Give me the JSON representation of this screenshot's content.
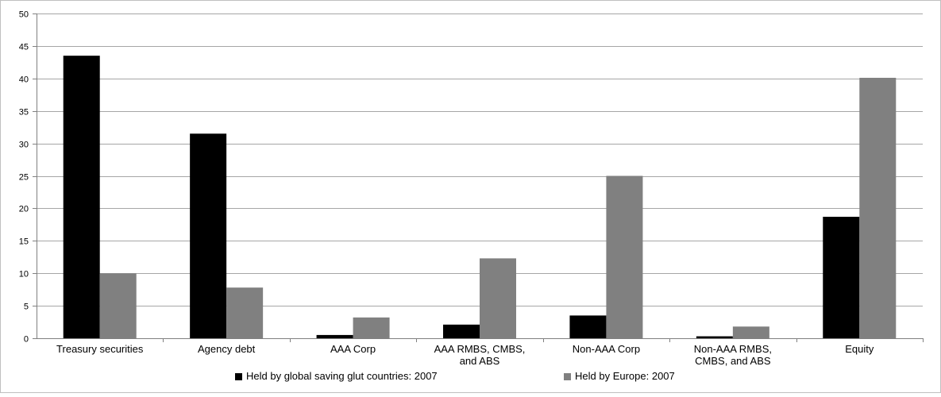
{
  "chart_data": {
    "type": "bar",
    "categories": [
      [
        "Treasury securities"
      ],
      [
        "Agency debt"
      ],
      [
        "AAA Corp"
      ],
      [
        "AAA RMBS, CMBS,",
        "and ABS"
      ],
      [
        "Non-AAA Corp"
      ],
      [
        "Non-AAA RMBS,",
        "CMBS, and ABS"
      ],
      [
        "Equity"
      ]
    ],
    "series": [
      {
        "name": "Held by global saving glut countries: 2007",
        "color": "#000000",
        "values": [
          43.5,
          31.5,
          0.5,
          2.1,
          3.5,
          0.3,
          18.7
        ]
      },
      {
        "name": "Held by Europe: 2007",
        "color": "#808080",
        "values": [
          10.0,
          7.8,
          3.2,
          12.3,
          25.0,
          1.8,
          40.1
        ]
      }
    ],
    "ylim": [
      0,
      50
    ],
    "yticks": [
      0,
      5,
      10,
      15,
      20,
      25,
      30,
      35,
      40,
      45,
      50
    ],
    "grid": true,
    "legend_position": "bottom"
  }
}
